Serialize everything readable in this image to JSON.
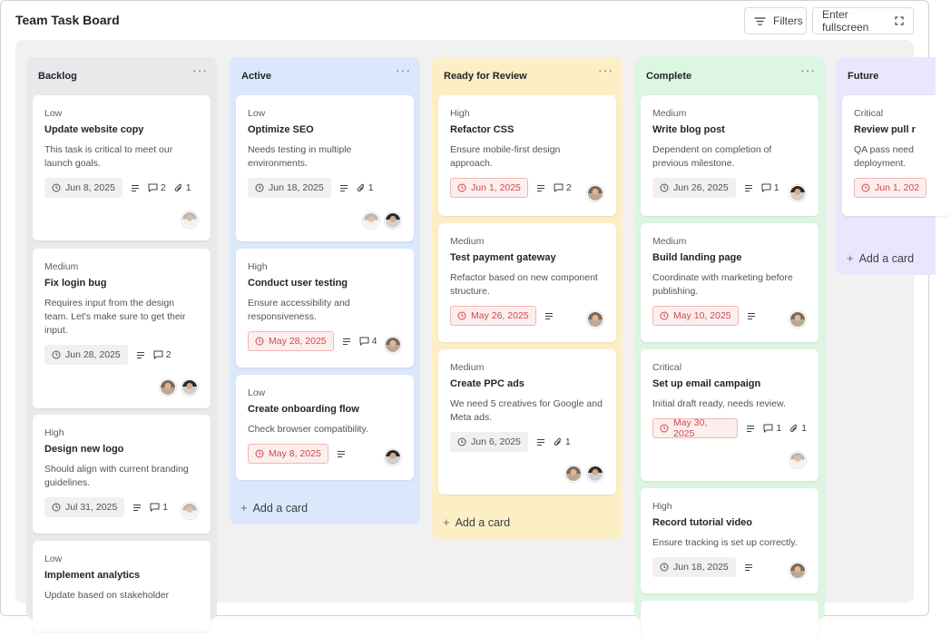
{
  "header": {
    "title": "Team Task Board",
    "filters_label": "Filters",
    "fullscreen_label": "Enter fullscreen"
  },
  "colors": {
    "backlog_bg": "#e8e9eb",
    "active_bg": "#dbe8fb",
    "review_bg": "#fcefc6",
    "complete_bg": "#dcf6e2",
    "future_bg": "#ebe6fb",
    "overdue": "#cd4a4a"
  },
  "icons": {
    "filter": "filter-lines-icon",
    "fullscreen": "expand-corners-icon",
    "clock": "clock-icon",
    "description": "description-lines-icon",
    "comment": "comment-icon",
    "attachment": "paperclip-icon",
    "column_menu": "more-horizontal-icon"
  },
  "menu_glyph": "···",
  "add_card_label": "Add a card",
  "columns": [
    {
      "title": "Backlog",
      "cards": [
        {
          "priority": "Low",
          "title": "Update website copy",
          "desc": "This task is critical to meet our launch goals.",
          "date": "Jun 8, 2025",
          "comments": "2",
          "attachments": "1"
        },
        {
          "priority": "Medium",
          "title": "Fix login bug",
          "desc": "Requires input from the design team. Let's make sure to get their input.",
          "date": "Jun 28, 2025",
          "comments": "2"
        },
        {
          "priority": "High",
          "title": "Design new logo",
          "desc": "Should align with current branding guidelines.",
          "date": "Jul 31, 2025",
          "comments": "1"
        },
        {
          "priority": "Low",
          "title": "Implement analytics",
          "desc": "Update based on stakeholder"
        }
      ]
    },
    {
      "title": "Active",
      "cards": [
        {
          "priority": "Low",
          "title": "Optimize SEO",
          "desc": "Needs testing in multiple environments.",
          "date": "Jun 18, 2025",
          "attachments": "1"
        },
        {
          "priority": "High",
          "title": "Conduct user testing",
          "desc": "Ensure accessibility and responsiveness.",
          "date": "May 28, 2025",
          "comments": "4"
        },
        {
          "priority": "Low",
          "title": "Create onboarding flow",
          "desc": "Check browser compatibility.",
          "date": "May 8, 2025"
        }
      ]
    },
    {
      "title": "Ready for Review",
      "cards": [
        {
          "priority": "High",
          "title": "Refactor CSS",
          "desc": "Ensure mobile-first design approach.",
          "date": "Jun 1, 2025",
          "comments": "2"
        },
        {
          "priority": "Medium",
          "title": "Test payment gateway",
          "desc": "Refactor based on new component structure.",
          "date": "May 26, 2025"
        },
        {
          "priority": "Medium",
          "title": "Create PPC ads",
          "desc": "We need 5 creatives for Google and Meta ads.",
          "date": "Jun 6, 2025",
          "attachments": "1"
        }
      ]
    },
    {
      "title": "Complete",
      "cards": [
        {
          "priority": "Medium",
          "title": "Write blog post",
          "desc": "Dependent on completion of previous milestone.",
          "date": "Jun 26, 2025",
          "comments": "1"
        },
        {
          "priority": "Medium",
          "title": "Build landing page",
          "desc": "Coordinate with marketing before publishing.",
          "date": "May 10, 2025"
        },
        {
          "priority": "Critical",
          "title": "Set up email campaign",
          "desc": "Initial draft ready, needs review.",
          "date": "May 30, 2025",
          "comments": "1",
          "attachments": "1"
        },
        {
          "priority": "High",
          "title": "Record tutorial video",
          "desc": "Ensure tracking is set up correctly.",
          "date": "Jun 18, 2025"
        }
      ]
    },
    {
      "title": "Future",
      "cards": [
        {
          "priority": "Critical",
          "title": "Review pull r",
          "desc": "QA pass need deployment.",
          "date": "Jun 1, 202"
        }
      ]
    }
  ]
}
